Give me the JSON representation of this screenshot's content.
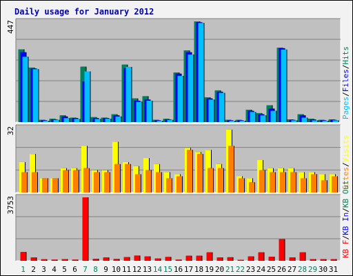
{
  "chart_data": {
    "type": "bar",
    "title": "Daily usage for January 2012",
    "days": [
      "1",
      "2",
      "3",
      "4",
      "5",
      "6",
      "7",
      "8",
      "9",
      "10",
      "11",
      "12",
      "13",
      "14",
      "15",
      "16",
      "17",
      "18",
      "19",
      "20",
      "21",
      "22",
      "23",
      "24",
      "25",
      "26",
      "27",
      "28",
      "29",
      "30",
      "31"
    ],
    "weekend_days": [
      1,
      7,
      8,
      14,
      15,
      21,
      22,
      28,
      29
    ],
    "colors": {
      "hits": "#00805c",
      "files": "#0000ff",
      "pages": "#00c0ff",
      "sites": "#ff8000",
      "visits": "#ffff00",
      "kb": "#ff0000",
      "weekday_label": "#000000",
      "weekend_label": "#00805c",
      "title": "#0000b0"
    },
    "panels": [
      {
        "name": "hits-files-pages",
        "ymax_label": "447",
        "ymax": 447,
        "legend": [
          {
            "text": "Pages",
            "color": "#00c0ff"
          },
          {
            "text": "/",
            "color": "#000000"
          },
          {
            "text": "Files",
            "color": "#0000ff"
          },
          {
            "text": "/",
            "color": "#000000"
          },
          {
            "text": "Hits",
            "color": "#00805c"
          }
        ],
        "series": [
          {
            "key": "hits",
            "values": [
              323,
              242,
              10,
              15,
              30,
              20,
              246,
              22,
              20,
              35,
              255,
              105,
              115,
              10,
              15,
              220,
              318,
              447,
              110,
              141,
              10,
              10,
              55,
              40,
              75,
              330,
              12,
              35,
              15,
              10,
              12
            ]
          },
          {
            "key": "files",
            "values": [
              310,
              238,
              8,
              12,
              25,
              18,
              180,
              18,
              18,
              30,
              240,
              95,
              100,
              8,
              12,
              215,
              310,
              443,
              105,
              135,
              8,
              8,
              50,
              35,
              60,
              328,
              10,
              30,
              12,
              8,
              10
            ]
          },
          {
            "key": "pages",
            "values": [
              290,
              235,
              6,
              10,
              18,
              14,
              225,
              14,
              15,
              25,
              245,
              90,
              95,
              6,
              10,
              205,
              300,
              440,
              100,
              130,
              6,
              6,
              45,
              30,
              50,
              322,
              8,
              20,
              8,
              6,
              8
            ]
          }
        ]
      },
      {
        "name": "sites-visits",
        "ymax_label": "32",
        "ymax": 32,
        "legend": [
          {
            "text": "Sites",
            "color": "#ff8000"
          },
          {
            "text": "/",
            "color": "#000000"
          },
          {
            "text": "Visits",
            "color": "#ffff00"
          }
        ],
        "series": [
          {
            "key": "visits",
            "values": [
              15,
              19,
              7,
              7,
              12,
              12,
              23,
              11,
              11,
              25,
              15,
              13,
              17,
              14,
              10,
              9,
              22,
              20,
              21,
              14,
              31,
              8,
              7,
              16,
              12,
              12,
              12,
              10,
              10,
              9,
              9
            ]
          },
          {
            "key": "sites",
            "values": [
              10,
              10,
              7,
              7,
              11,
              11,
              12,
              10,
              10,
              14,
              14,
              9,
              11,
              10,
              7,
              8,
              21,
              19,
              12,
              12,
              23,
              7,
              5,
              11,
              10,
              10,
              10,
              7,
              9,
              6,
              8
            ]
          }
        ]
      },
      {
        "name": "kb",
        "ymax_label": "3753",
        "ymax": 3753,
        "legend": [
          {
            "text": "KB F",
            "color": "#ff0000"
          },
          {
            "text": "/",
            "color": "#000000"
          },
          {
            "text": "KB In",
            "color": "#0000ff"
          },
          {
            "text": "/",
            "color": "#000000"
          },
          {
            "text": "KB Out",
            "color": "#00805c"
          }
        ],
        "series": [
          {
            "key": "kb",
            "values": [
              520,
              200,
              90,
              70,
              100,
              70,
              3753,
              120,
              200,
              110,
              220,
              310,
              260,
              140,
              230,
              70,
              300,
              300,
              500,
              200,
              210,
              60,
              260,
              500,
              240,
              1280,
              200,
              500,
              100,
              100,
              100
            ]
          }
        ]
      }
    ]
  }
}
